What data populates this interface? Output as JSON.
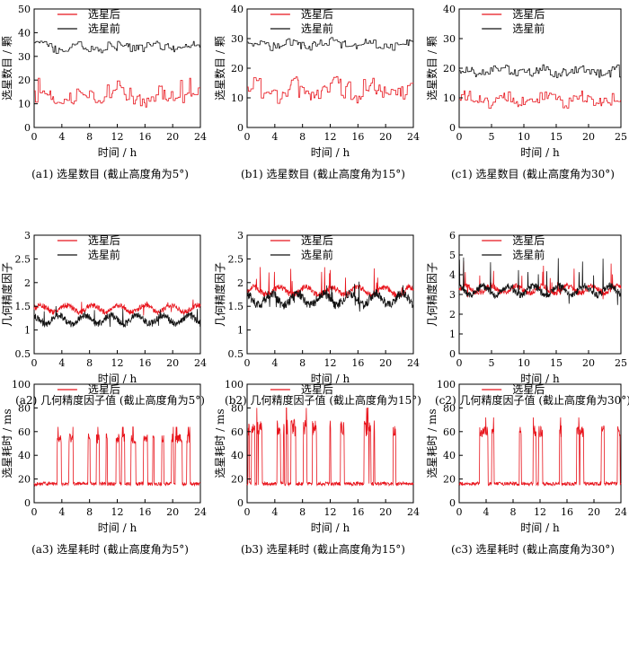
{
  "colors": {
    "after": "#e8141c",
    "before": "#111111"
  },
  "chart_data": [
    {
      "id": "a1",
      "type": "line",
      "caption": "(a1) 选星数目 (截止高度角为5°)",
      "xlabel": "时间 / h",
      "ylabel": "选星数目 / 颗",
      "xlim": [
        0,
        24
      ],
      "ylim": [
        0,
        50
      ],
      "xticks": [
        "0",
        "4",
        "8",
        "12",
        "16",
        "20",
        "24"
      ],
      "yticks": [
        "0",
        "10",
        "20",
        "30",
        "40",
        "50"
      ],
      "series": [
        {
          "name": "选星后",
          "kind": "after",
          "style": "step",
          "level": 13,
          "spread": 3,
          "spike_min": 9,
          "spike_max": 21
        },
        {
          "name": "选星前",
          "kind": "before",
          "style": "step",
          "level": 34,
          "spread": 1.8,
          "spike_min": 31,
          "spike_max": 38
        }
      ]
    },
    {
      "id": "b1",
      "type": "line",
      "caption": "(b1) 选星数目 (截止高度角为15°)",
      "xlabel": "时间 / h",
      "ylabel": "选星数目 / 颗",
      "xlim": [
        0,
        24
      ],
      "ylim": [
        0,
        40
      ],
      "xticks": [
        "0",
        "4",
        "8",
        "12",
        "16",
        "20",
        "24"
      ],
      "yticks": [
        "0",
        "10",
        "20",
        "30",
        "40"
      ],
      "series": [
        {
          "name": "选星后",
          "kind": "after",
          "style": "step",
          "level": 12.5,
          "spread": 3,
          "spike_min": 9,
          "spike_max": 18
        },
        {
          "name": "选星前",
          "kind": "before",
          "style": "step",
          "level": 28,
          "spread": 1.5,
          "spike_min": 25,
          "spike_max": 31
        }
      ]
    },
    {
      "id": "c1",
      "type": "line",
      "caption": "(c1) 选星数目 (截止高度角为30°)",
      "xlabel": "时间 / h",
      "ylabel": "选星数目 / 颗",
      "xlim": [
        0,
        24
      ],
      "ylim": [
        0,
        40
      ],
      "xticks": [
        "0",
        "5",
        "10",
        "15",
        "20",
        "25"
      ],
      "yticks": [
        "0",
        "10",
        "20",
        "30",
        "40"
      ],
      "series": [
        {
          "name": "选星后",
          "kind": "after",
          "style": "step",
          "level": 9.5,
          "spread": 2,
          "spike_min": 6,
          "spike_max": 12
        },
        {
          "name": "选星前",
          "kind": "before",
          "style": "step",
          "level": 19,
          "spread": 1.5,
          "spike_min": 16,
          "spike_max": 22
        }
      ]
    },
    {
      "id": "a2",
      "type": "line",
      "caption": "(a2) 几何精度因子值 (截止高度角为5°)",
      "xlabel": "时间 / h",
      "ylabel": "几何精度因子",
      "xlim": [
        0,
        24
      ],
      "ylim": [
        0.5,
        3
      ],
      "xticks": [
        "0",
        "4",
        "8",
        "12",
        "16",
        "20",
        "24"
      ],
      "yticks": [
        "0.5",
        "1",
        "1.5",
        "2",
        "2.5",
        "3"
      ],
      "series": [
        {
          "name": "选星后",
          "kind": "after",
          "style": "noisy",
          "level": 1.45,
          "spread": 0.07,
          "spike_min": 1.3,
          "spike_max": 1.65
        },
        {
          "name": "选星前",
          "kind": "before",
          "style": "noisy",
          "level": 1.22,
          "spread": 0.09,
          "spike_min": 1.0,
          "spike_max": 1.6
        }
      ]
    },
    {
      "id": "b2",
      "type": "line",
      "caption": "(b2) 几何精度因子值 (截止高度角为15°)",
      "xlabel": "时间 / h",
      "ylabel": "几何精度因子",
      "xlim": [
        0,
        24
      ],
      "ylim": [
        0.5,
        3
      ],
      "xticks": [
        "0",
        "4",
        "8",
        "12",
        "16",
        "20",
        "24"
      ],
      "yticks": [
        "0.5",
        "1",
        "1.5",
        "2",
        "2.5",
        "3"
      ],
      "series": [
        {
          "name": "选星后",
          "kind": "after",
          "style": "noisy",
          "level": 1.82,
          "spread": 0.08,
          "spike_min": 1.55,
          "spike_max": 2.35
        },
        {
          "name": "选星前",
          "kind": "before",
          "style": "noisy",
          "level": 1.65,
          "spread": 0.12,
          "spike_min": 1.35,
          "spike_max": 2.05
        }
      ]
    },
    {
      "id": "c2",
      "type": "line",
      "caption": "(c2) 几何精度因子值 (截止高度角为30°)",
      "xlabel": "时间 / h",
      "ylabel": "几何精度因子",
      "xlim": [
        0,
        24
      ],
      "ylim": [
        0,
        6
      ],
      "xticks": [
        "0",
        "5",
        "10",
        "15",
        "20",
        "25"
      ],
      "yticks": [
        "0",
        "1",
        "2",
        "3",
        "4",
        "5",
        "6"
      ],
      "series": [
        {
          "name": "选星后",
          "kind": "after",
          "style": "noisy",
          "level": 3.25,
          "spread": 0.18,
          "spike_min": 2.7,
          "spike_max": 4.9
        },
        {
          "name": "选星前",
          "kind": "before",
          "style": "noisy",
          "level": 3.2,
          "spread": 0.22,
          "spike_min": 2.4,
          "spike_max": 4.9
        }
      ]
    },
    {
      "id": "a3",
      "type": "line",
      "caption": "(a3) 选星耗时 (截止高度角为5°)",
      "xlabel": "时间 / h",
      "ylabel": "选星耗时 / ms",
      "xlim": [
        0,
        24
      ],
      "ylim": [
        0,
        100
      ],
      "xticks": [
        "0",
        "4",
        "8",
        "12",
        "16",
        "20",
        "24"
      ],
      "yticks": [
        "0",
        "20",
        "40",
        "60",
        "80",
        "100"
      ],
      "series": [
        {
          "name": "选星后",
          "kind": "after",
          "style": "burst",
          "level": 16,
          "spread": 1.5,
          "spike_min": 50,
          "spike_max": 64
        }
      ]
    },
    {
      "id": "b3",
      "type": "line",
      "caption": "(b3) 选星耗时 (截止高度角为15°)",
      "xlabel": "时间 / h",
      "ylabel": "选星耗时 / ms",
      "xlim": [
        0,
        24
      ],
      "ylim": [
        0,
        100
      ],
      "xticks": [
        "0",
        "4",
        "8",
        "12",
        "16",
        "20",
        "24"
      ],
      "yticks": [
        "0",
        "20",
        "40",
        "60",
        "80",
        "100"
      ],
      "series": [
        {
          "name": "选星后",
          "kind": "after",
          "style": "burst",
          "level": 16,
          "spread": 1.5,
          "spike_min": 56,
          "spike_max": 80
        }
      ]
    },
    {
      "id": "c3",
      "type": "line",
      "caption": "(c3) 选星耗时 (截止高度角为30°)",
      "xlabel": "时间 / h",
      "ylabel": "选星耗时 / ms",
      "xlim": [
        0,
        24
      ],
      "ylim": [
        0,
        100
      ],
      "xticks": [
        "0",
        "4",
        "8",
        "12",
        "16",
        "20",
        "24"
      ],
      "yticks": [
        "0",
        "20",
        "40",
        "60",
        "80",
        "100"
      ],
      "series": [
        {
          "name": "选星后",
          "kind": "after",
          "style": "burst",
          "level": 16,
          "spread": 1.5,
          "spike_min": 55,
          "spike_max": 72
        }
      ]
    }
  ]
}
